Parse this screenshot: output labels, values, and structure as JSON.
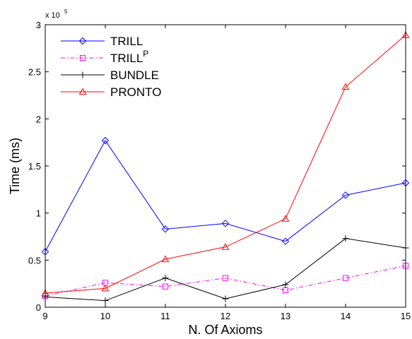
{
  "chart_data": {
    "type": "line",
    "xlabel": "N. Of Axioms",
    "ylabel": "Time (ms)",
    "y_multiplier_label": "x 10",
    "y_multiplier_exponent": "5",
    "xlim": [
      9,
      15
    ],
    "ylim": [
      0,
      300000
    ],
    "x_ticks": [
      9,
      10,
      11,
      12,
      13,
      14,
      15
    ],
    "x_tick_labels": [
      "9",
      "10",
      "11",
      "12",
      "13",
      "14",
      "15"
    ],
    "y_ticks": [
      0,
      50000,
      100000,
      150000,
      200000,
      250000,
      300000
    ],
    "y_tick_labels": [
      "0",
      "0.5",
      "1",
      "1.5",
      "2",
      "2.5",
      "3"
    ],
    "grid": false,
    "legend_position": "top-left",
    "x": [
      9,
      10,
      11,
      12,
      13,
      14,
      15
    ],
    "series": [
      {
        "name": "TRILL",
        "name_base": "TRILL",
        "name_sup": "",
        "color": "#0000ff",
        "marker": "diamond",
        "dash": "",
        "values": [
          59000,
          177000,
          83000,
          89000,
          70000,
          119000,
          132000
        ]
      },
      {
        "name": "TRILLP",
        "name_base": "TRILL",
        "name_sup": "P",
        "color": "#ff00ff",
        "marker": "square",
        "dash": "6,3,1.5,3",
        "values": [
          12000,
          26000,
          22000,
          31000,
          18000,
          31000,
          44000
        ]
      },
      {
        "name": "BUNDLE",
        "name_base": "BUNDLE",
        "name_sup": "",
        "color": "#000000",
        "marker": "plus",
        "dash": "",
        "values": [
          11000,
          7000,
          31000,
          9000,
          24000,
          73000,
          63000
        ]
      },
      {
        "name": "PRONTO",
        "name_base": "PRONTO",
        "name_sup": "",
        "color": "#ff0000",
        "marker": "triangle",
        "dash": "",
        "values": [
          15000,
          20000,
          51000,
          64000,
          94000,
          234000,
          289000
        ]
      }
    ]
  }
}
